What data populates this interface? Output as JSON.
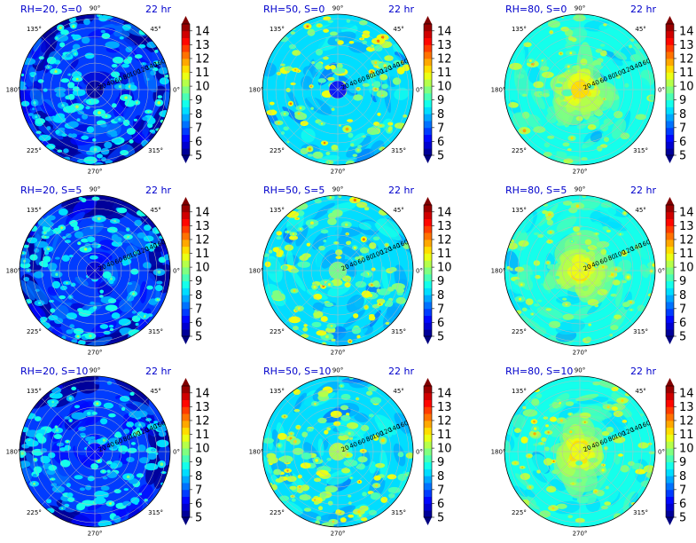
{
  "chart_data": {
    "type": "heatmap",
    "layout": {
      "rows": 3,
      "cols": 3
    },
    "projection": "polar",
    "time_label": "22 hr",
    "theta_tick_labels": [
      "0°",
      "45°",
      "90°",
      "135°",
      "180°",
      "225°",
      "270°",
      "315°"
    ],
    "r_tick_labels": [
      "20",
      "40",
      "60",
      "80",
      "100",
      "120",
      "140",
      "160"
    ],
    "rlim": [
      0,
      170
    ],
    "colormap": "jet",
    "colorbar": {
      "min": 5,
      "max": 14.5,
      "extend": "both",
      "ticks": [
        5,
        6,
        7,
        8,
        9,
        10,
        11,
        12,
        13,
        14
      ]
    },
    "grid": true,
    "panels": [
      {
        "title": "RH=20, S=0",
        "rh": 20,
        "s": 0,
        "center_value": 5.0,
        "background_value": 6.5,
        "blob_count": 170,
        "blob_range": [
          7.5,
          9.0
        ]
      },
      {
        "title": "RH=50, S=0",
        "rh": 50,
        "s": 0,
        "center_value": 6.0,
        "background_value": 8.0,
        "blob_count": 130,
        "blob_range": [
          9.0,
          11.0
        ]
      },
      {
        "title": "RH=80, S=0",
        "rh": 80,
        "s": 0,
        "center_value": 11.0,
        "background_value": 8.6,
        "blob_count": 90,
        "blob_range": [
          9.2,
          10.5
        ]
      },
      {
        "title": "RH=20, S=5",
        "rh": 20,
        "s": 5,
        "center_value": 5.5,
        "background_value": 6.6,
        "blob_count": 160,
        "blob_range": [
          7.5,
          9.0
        ]
      },
      {
        "title": "RH=50, S=5",
        "rh": 50,
        "s": 5,
        "center_value": 9.5,
        "background_value": 8.1,
        "blob_count": 130,
        "blob_range": [
          9.0,
          11.0
        ]
      },
      {
        "title": "RH=80, S=5",
        "rh": 80,
        "s": 5,
        "center_value": 10.5,
        "background_value": 8.6,
        "blob_count": 90,
        "blob_range": [
          9.2,
          10.5
        ]
      },
      {
        "title": "RH=20, S=10",
        "rh": 20,
        "s": 10,
        "center_value": 6.0,
        "background_value": 6.5,
        "blob_count": 170,
        "blob_range": [
          7.5,
          9.0
        ]
      },
      {
        "title": "RH=50, S=10",
        "rh": 50,
        "s": 10,
        "center_value": 10.0,
        "background_value": 8.1,
        "blob_count": 140,
        "blob_range": [
          9.0,
          11.0
        ]
      },
      {
        "title": "RH=80, S=10",
        "rh": 80,
        "s": 10,
        "center_value": 10.5,
        "background_value": 8.7,
        "blob_count": 95,
        "blob_range": [
          9.2,
          10.8
        ]
      }
    ]
  }
}
